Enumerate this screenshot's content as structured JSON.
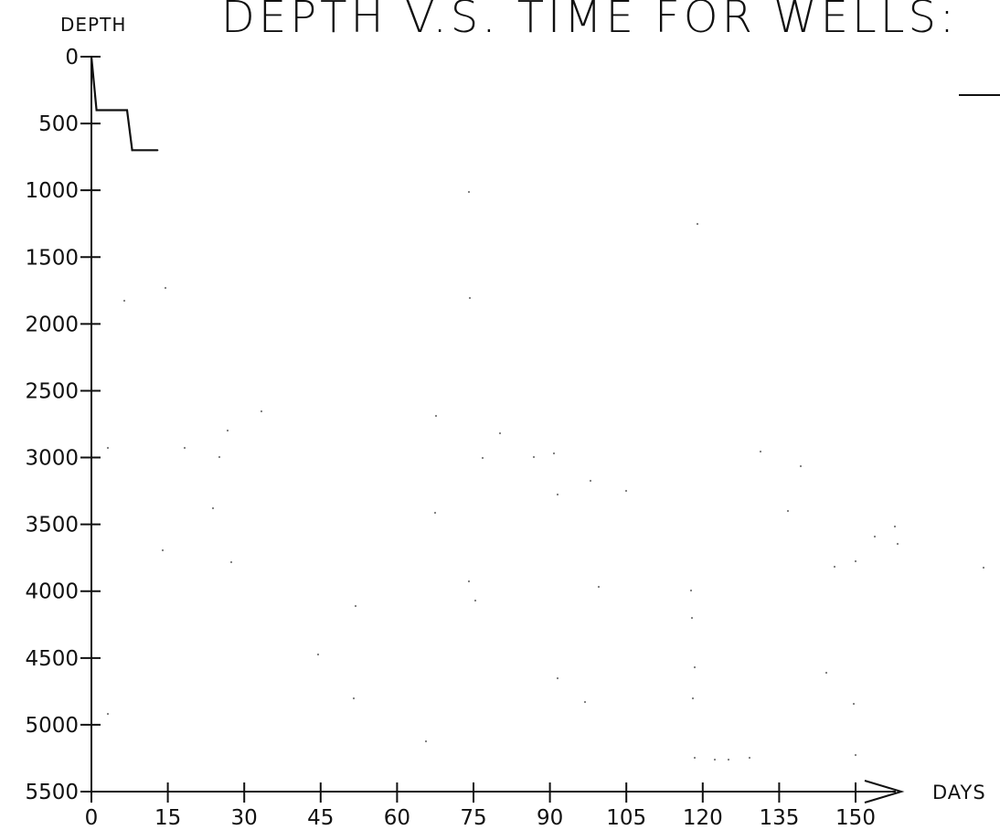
{
  "chart_data": {
    "type": "line",
    "title": "DEPTH V.S. TIME FOR WELLS:",
    "ylabel": "DEPTH",
    "xlabel": "DAYS",
    "xlim": [
      0,
      150
    ],
    "ylim": [
      0,
      5500
    ],
    "y_inverted": true,
    "x_ticks": [
      0,
      15,
      30,
      45,
      60,
      75,
      90,
      105,
      120,
      135,
      150
    ],
    "y_ticks": [
      0,
      500,
      1000,
      1500,
      2000,
      2500,
      3000,
      3500,
      4000,
      4500,
      5000,
      5500
    ],
    "x_tick_labels": [
      "0",
      "15",
      "30",
      "45",
      "60",
      "75",
      "90",
      "105",
      "120",
      "135",
      "150"
    ],
    "y_tick_labels": [
      "0",
      "500",
      "1000",
      "1500",
      "2000",
      "2500",
      "3000",
      "3500",
      "4000",
      "4500",
      "5000",
      "5500"
    ],
    "legend": "top-right",
    "grid": false,
    "series": [
      {
        "x": [
          0,
          1,
          7,
          8,
          13
        ],
        "y": [
          0,
          400,
          400,
          700,
          700
        ],
        "color": "#111111"
      }
    ]
  }
}
